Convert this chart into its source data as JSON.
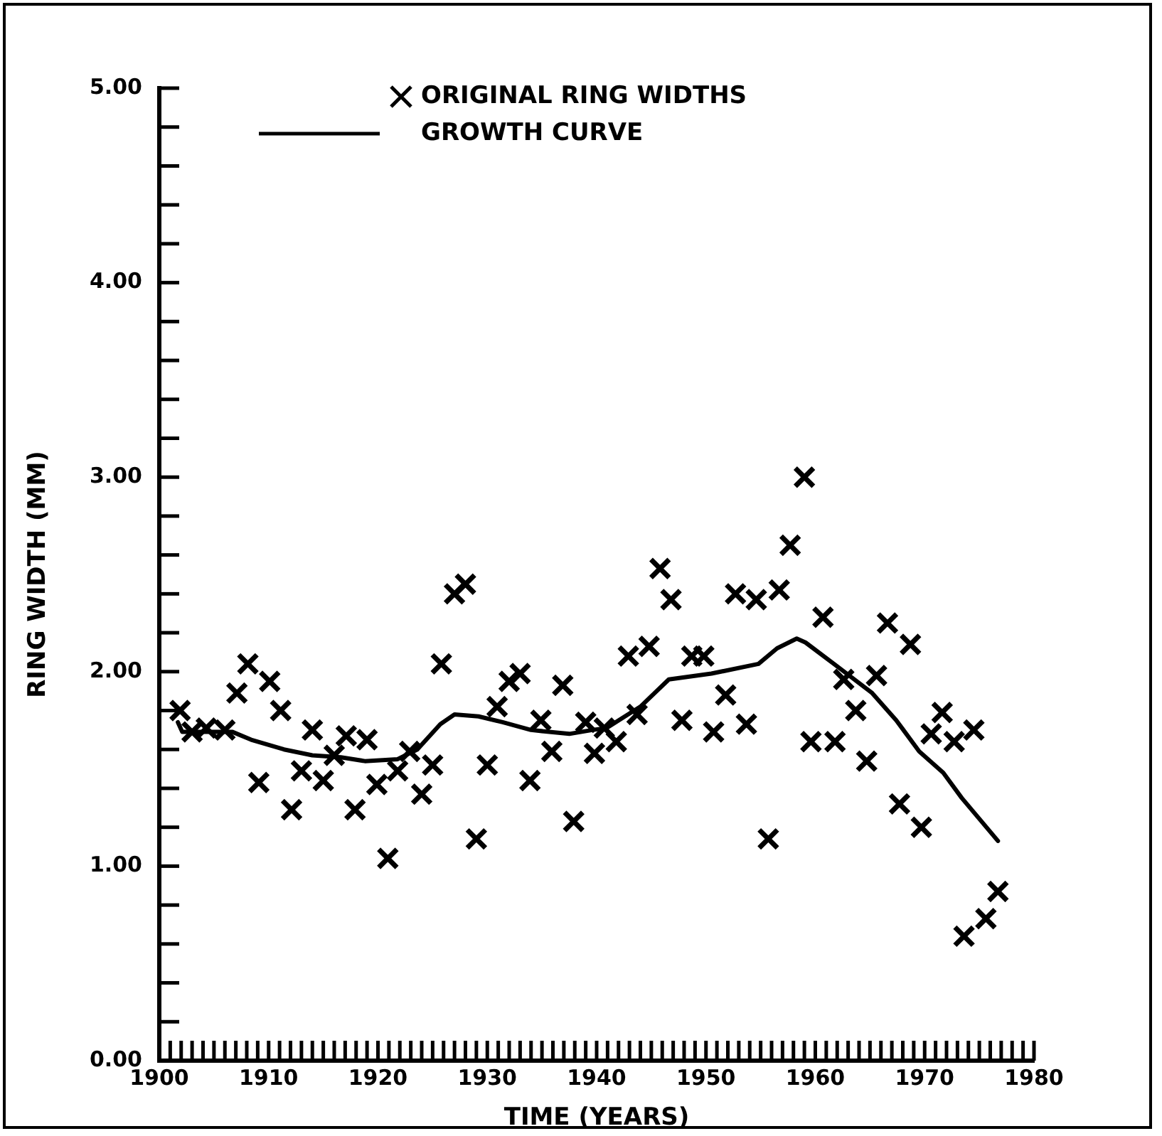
{
  "chart_data": {
    "type": "scatter",
    "xlabel": "TIME (YEARS)",
    "ylabel": "RING WIDTH (MM)",
    "legend": "top",
    "grid": false,
    "marker": "cross",
    "xlim": [
      1900,
      1980
    ],
    "ylim": [
      0,
      5
    ],
    "xticks": [
      1900,
      {
        "value": 1901,
        "label": null
      },
      {
        "value": 1902,
        "label": null
      },
      {
        "value": 1903,
        "label": null
      },
      {
        "value": 1904,
        "label": null
      },
      {
        "value": 1905,
        "label": null
      },
      {
        "value": 1906,
        "label": null
      },
      {
        "value": 1907,
        "label": null
      },
      {
        "value": 1908,
        "label": null
      },
      {
        "value": 1909,
        "label": null
      },
      1910,
      {
        "value": 1911,
        "label": null
      },
      {
        "value": 1912,
        "label": null
      },
      {
        "value": 1913,
        "label": null
      },
      {
        "value": 1914,
        "label": null
      },
      {
        "value": 1915,
        "label": null
      },
      {
        "value": 1916,
        "label": null
      },
      {
        "value": 1917,
        "label": null
      },
      {
        "value": 1918,
        "label": null
      },
      {
        "value": 1919,
        "label": null
      },
      1920,
      {
        "value": 1921,
        "label": null
      },
      {
        "value": 1922,
        "label": null
      },
      {
        "value": 1923,
        "label": null
      },
      {
        "value": 1924,
        "label": null
      },
      {
        "value": 1925,
        "label": null
      },
      {
        "value": 1926,
        "label": null
      },
      {
        "value": 1927,
        "label": null
      },
      {
        "value": 1928,
        "label": null
      },
      {
        "value": 1929,
        "label": null
      },
      1930,
      {
        "value": 1931,
        "label": null
      },
      {
        "value": 1932,
        "label": null
      },
      {
        "value": 1933,
        "label": null
      },
      {
        "value": 1934,
        "label": null
      },
      {
        "value": 1935,
        "label": null
      },
      {
        "value": 1936,
        "label": null
      },
      {
        "value": 1937,
        "label": null
      },
      {
        "value": 1938,
        "label": null
      },
      {
        "value": 1939,
        "label": null
      },
      1940,
      {
        "value": 1941,
        "label": null
      },
      {
        "value": 1942,
        "label": null
      },
      {
        "value": 1943,
        "label": null
      },
      {
        "value": 1944,
        "label": null
      },
      {
        "value": 1945,
        "label": null
      },
      {
        "value": 1946,
        "label": null
      },
      {
        "value": 1947,
        "label": null
      },
      {
        "value": 1948,
        "label": null
      },
      {
        "value": 1949,
        "label": null
      },
      1950,
      {
        "value": 1951,
        "label": null
      },
      {
        "value": 1952,
        "label": null
      },
      {
        "value": 1953,
        "label": null
      },
      {
        "value": 1954,
        "label": null
      },
      {
        "value": 1955,
        "label": null
      },
      {
        "value": 1956,
        "label": null
      },
      {
        "value": 1957,
        "label": null
      },
      {
        "value": 1958,
        "label": null
      },
      {
        "value": 1959,
        "label": null
      },
      1960,
      {
        "value": 1961,
        "label": null
      },
      {
        "value": 1962,
        "label": null
      },
      {
        "value": 1963,
        "label": null
      },
      {
        "value": 1964,
        "label": null
      },
      {
        "value": 1965,
        "label": null
      },
      {
        "value": 1966,
        "label": null
      },
      {
        "value": 1967,
        "label": null
      },
      {
        "value": 1968,
        "label": null
      },
      {
        "value": 1969,
        "label": null
      },
      1970,
      {
        "value": 1971,
        "label": null
      },
      {
        "value": 1972,
        "label": null
      },
      {
        "value": 1973,
        "label": null
      },
      {
        "value": 1974,
        "label": null
      },
      {
        "value": 1975,
        "label": null
      },
      {
        "value": 1976,
        "label": null
      },
      {
        "value": 1977,
        "label": null
      },
      {
        "value": 1978,
        "label": null
      },
      {
        "value": 1979,
        "label": null
      },
      1980
    ],
    "yticks": [
      {
        "value": 0,
        "label": "0.00"
      },
      {
        "value": 0.2,
        "label": null
      },
      {
        "value": 0.4,
        "label": null
      },
      {
        "value": 0.6,
        "label": null
      },
      {
        "value": 0.8,
        "label": null
      },
      {
        "value": 1,
        "label": "1.00"
      },
      {
        "value": 1.2,
        "label": null
      },
      {
        "value": 1.4,
        "label": null
      },
      {
        "value": 1.6,
        "label": null
      },
      {
        "value": 1.8,
        "label": null
      },
      {
        "value": 2,
        "label": "2.00"
      },
      {
        "value": 2.2,
        "label": null
      },
      {
        "value": 2.4,
        "label": null
      },
      {
        "value": 2.6,
        "label": null
      },
      {
        "value": 2.8,
        "label": null
      },
      {
        "value": 3,
        "label": "3.00"
      },
      {
        "value": 3.2,
        "label": null
      },
      {
        "value": 3.4,
        "label": null
      },
      {
        "value": 3.6,
        "label": null
      },
      {
        "value": 3.8,
        "label": null
      },
      {
        "value": 4,
        "label": "4.00"
      },
      {
        "value": 4.2,
        "label": null
      },
      {
        "value": 4.4,
        "label": null
      },
      {
        "value": 4.6,
        "label": null
      },
      {
        "value": 4.8,
        "label": null
      },
      {
        "value": 5,
        "label": "5.00"
      }
    ],
    "series": [
      {
        "name": "ORIGINAL RING WIDTHS",
        "type": "scatter",
        "marker": "cross",
        "color": "#000000",
        "x": [
          1901.9,
          1903.0,
          1904.3,
          1906.0,
          1907.1,
          1908.1,
          1909.1,
          1910.1,
          1911.1,
          1912.1,
          1913.0,
          1914.0,
          1915.0,
          1916.0,
          1917.1,
          1917.9,
          1919.0,
          1919.9,
          1920.9,
          1921.8,
          1922.9,
          1924.0,
          1925.0,
          1925.8,
          1927.0,
          1928.0,
          1929.0,
          1930.0,
          1930.9,
          1932.0,
          1933.0,
          1933.9,
          1934.9,
          1935.9,
          1936.9,
          1937.9,
          1939.0,
          1939.8,
          1940.7,
          1941.8,
          1942.9,
          1943.7,
          1944.8,
          1945.8,
          1946.8,
          1947.8,
          1948.7,
          1949.8,
          1950.7,
          1951.8,
          1952.7,
          1953.7,
          1954.6,
          1955.7,
          1956.7,
          1957.7,
          1959.0,
          1959.6,
          1960.7,
          1961.8,
          1962.6,
          1963.7,
          1964.7,
          1965.6,
          1966.6,
          1967.7,
          1968.7,
          1969.7,
          1970.6,
          1971.6,
          1972.7,
          1973.6,
          1974.5,
          1975.6,
          1976.7
        ],
        "values": [
          1.8,
          1.69,
          1.71,
          1.7,
          1.89,
          2.04,
          1.43,
          1.95,
          1.8,
          1.29,
          1.49,
          1.7,
          1.44,
          1.57,
          1.67,
          1.29,
          1.65,
          1.42,
          1.04,
          1.49,
          1.59,
          1.37,
          1.52,
          2.04,
          2.4,
          2.45,
          1.14,
          1.52,
          1.82,
          1.95,
          1.99,
          1.44,
          1.75,
          1.59,
          1.93,
          1.23,
          1.74,
          1.58,
          1.71,
          1.64,
          2.08,
          1.78,
          2.13,
          2.53,
          2.37,
          1.75,
          2.08,
          2.08,
          1.69,
          1.88,
          2.4,
          1.73,
          2.37,
          1.14,
          2.42,
          2.65,
          3.0,
          1.64,
          2.28,
          1.64,
          1.96,
          1.8,
          1.54,
          1.98,
          2.25,
          1.32,
          2.14,
          1.2,
          1.68,
          1.79,
          1.64,
          0.64,
          1.7,
          0.73,
          0.87
        ]
      },
      {
        "name": "GROWTH CURVE",
        "type": "line",
        "marker": "none",
        "line_style": "solid",
        "color": "#000000",
        "x": [
          1901.7,
          1902.1,
          1906.7,
          1908.4,
          1911.4,
          1914.0,
          1916.6,
          1918.8,
          1921.8,
          1923.6,
          1925.7,
          1927.0,
          1929.2,
          1931.4,
          1934.0,
          1937.5,
          1939.6,
          1940.9,
          1944.0,
          1946.6,
          1950.5,
          1954.8,
          1956.5,
          1958.3,
          1959.1,
          1961.7,
          1965.2,
          1967.4,
          1969.5,
          1971.7,
          1973.4,
          1976.7
        ],
        "values": [
          1.74,
          1.69,
          1.69,
          1.65,
          1.6,
          1.57,
          1.56,
          1.54,
          1.55,
          1.6,
          1.73,
          1.78,
          1.77,
          1.74,
          1.7,
          1.68,
          1.7,
          1.71,
          1.82,
          1.96,
          1.99,
          2.04,
          2.12,
          2.17,
          2.15,
          2.04,
          1.89,
          1.75,
          1.59,
          1.48,
          1.35,
          1.13
        ]
      }
    ]
  }
}
